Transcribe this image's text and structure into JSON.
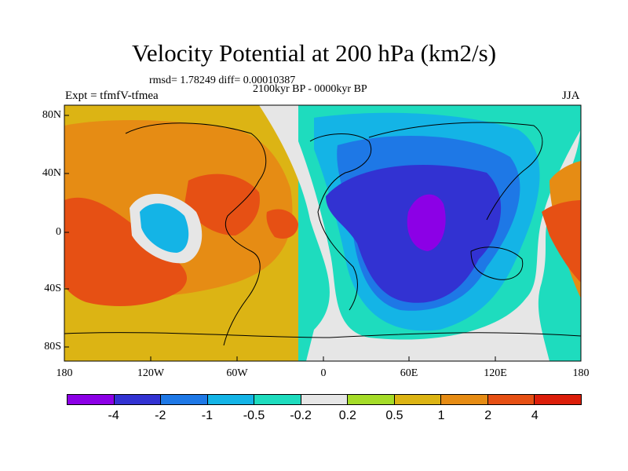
{
  "title": "Velocity Potential at 200 hPa (km2/s)",
  "stats": "rmsd= 1.78249 diff= 0.00010387",
  "period": "2100kyr BP - 0000kyr BP",
  "experiment": "Expt = tfmfV-tfmea",
  "season": "JJA",
  "lat_labels": [
    "80N",
    "40N",
    "0",
    "40S",
    "80S"
  ],
  "lon_labels": [
    "180",
    "120W",
    "60W",
    "0",
    "60E",
    "120E",
    "180"
  ],
  "colorbar": {
    "colors": [
      "#8c00e6",
      "#3232d2",
      "#1e78e6",
      "#14b4e6",
      "#1edcbe",
      "#e6e6e6",
      "#a5dc28",
      "#dcb414",
      "#e68c14",
      "#e65014",
      "#dc1e0a"
    ],
    "labels": [
      "-4",
      "-2",
      "-1",
      "-0.5",
      "-0.2",
      "0.2",
      "0.5",
      "1",
      "2",
      "4"
    ]
  },
  "chart_data": {
    "type": "heatmap",
    "variable": "Velocity Potential at 200 hPa",
    "units": "km2/s",
    "levels": [
      -4,
      -2,
      -1,
      -0.5,
      -0.2,
      0.2,
      0.5,
      1,
      2,
      4
    ],
    "lat_range": [
      -90,
      90
    ],
    "lon_range": [
      -180,
      180
    ]
  }
}
